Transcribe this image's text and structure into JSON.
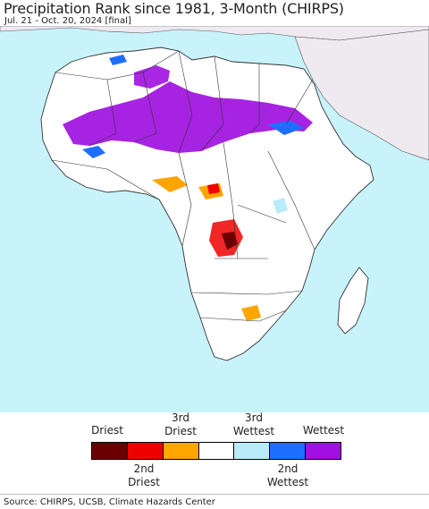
{
  "title": "Precipitation Rank since 1981, 3-Month (CHIRPS)",
  "subtitle": "Jul. 21 - Oct. 20, 2024 [final]",
  "legend": {
    "top_labels": {
      "driest": "Driest",
      "third_driest": "3rd\nDriest",
      "third_wettest": "3rd\nWettest",
      "wettest": "Wettest"
    },
    "bottom_labels": {
      "second_driest": "2nd\nDriest",
      "second_wettest": "2nd\nWettest"
    },
    "classes": [
      {
        "name": "Driest",
        "color": "#6b0000"
      },
      {
        "name": "2nd Driest",
        "color": "#ee0000"
      },
      {
        "name": "3rd Driest",
        "color": "#ffa500"
      },
      {
        "name": "Normal",
        "color": "#ffffff"
      },
      {
        "name": "3rd Wettest",
        "color": "#b8ecfb"
      },
      {
        "name": "2nd Wettest",
        "color": "#1e6eff"
      },
      {
        "name": "Wettest",
        "color": "#a010e0"
      }
    ]
  },
  "colors": {
    "ocean": "#c8f3fb",
    "land": "#ffffff",
    "no_data_land": "#eeeaf0",
    "border": "#333333"
  },
  "source": "Source: CHIRPS, UCSB, Climate Hazards Center"
}
